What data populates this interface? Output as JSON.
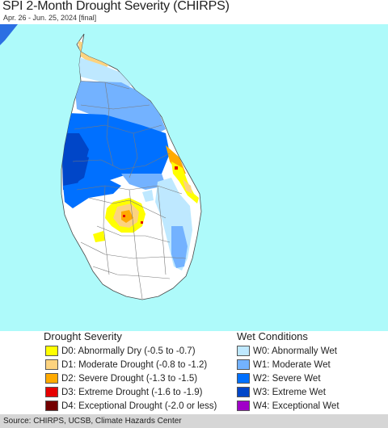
{
  "title": "SPI 2-Month Drought Severity (CHIRPS)",
  "subtitle": "Apr. 26 - Jun. 25, 2024 [final]",
  "colors": {
    "ocean": "#aefafa",
    "land": "#ffffff",
    "mainland": "#2b6fe3",
    "boundary": "#7a7a7a"
  },
  "legend": {
    "drought": {
      "title": "Drought Severity",
      "items": [
        {
          "label": "D0: Abnormally Dry (-0.5 to -0.7)",
          "color": "#ffff00"
        },
        {
          "label": "D1: Moderate Drought (-0.8 to -1.2)",
          "color": "#fcd37f"
        },
        {
          "label": "D2: Severe Drought (-1.3 to -1.5)",
          "color": "#ffaa00"
        },
        {
          "label": "D3: Extreme Drought (-1.6 to -1.9)",
          "color": "#e60000"
        },
        {
          "label": "D4: Exceptional Drought (-2.0 or less)",
          "color": "#730000"
        }
      ]
    },
    "wet": {
      "title": "Wet Conditions",
      "items": [
        {
          "label": "W0: Abnormally Wet",
          "color": "#bee8ff"
        },
        {
          "label": "W1: Moderate Wet",
          "color": "#73b2ff"
        },
        {
          "label": "W2: Severe Wet",
          "color": "#0070ff"
        },
        {
          "label": "W3: Extreme Wet",
          "color": "#0046c8"
        },
        {
          "label": "W4: Exceptional Wet",
          "color": "#a000c8"
        }
      ]
    }
  },
  "source": "Source: CHIRPS, UCSB, Climate Hazards Center"
}
